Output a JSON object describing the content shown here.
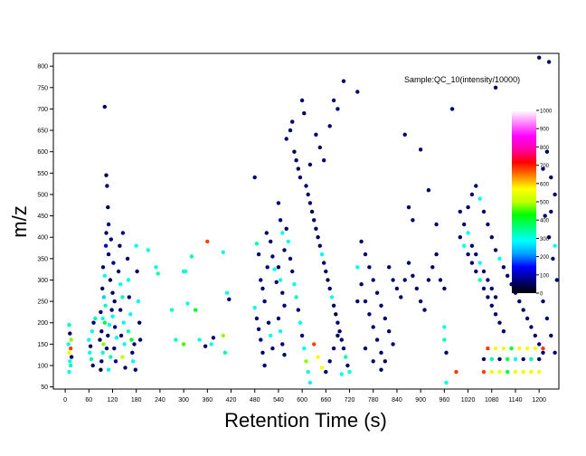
{
  "chart_data": {
    "type": "scatter",
    "title": "Sample:QC_10(intensity/10000)",
    "xlabel": "Retention Time (s)",
    "ylabel": "m/z",
    "xlim": [
      -30,
      1250
    ],
    "ylim": [
      45,
      830
    ],
    "xticks": [
      0,
      60,
      120,
      180,
      240,
      300,
      360,
      420,
      480,
      540,
      600,
      660,
      720,
      780,
      840,
      900,
      960,
      1020,
      1080,
      1140,
      1200
    ],
    "xtick_labels": [
      "0",
      "60",
      "120",
      "180",
      "240",
      "300",
      "360",
      "420",
      "480",
      "540",
      "600",
      "660",
      "720",
      "780",
      "840",
      "900",
      "960",
      "1020",
      "1080",
      "1140",
      "1200"
    ],
    "yticks": [
      50,
      100,
      150,
      200,
      250,
      300,
      350,
      400,
      450,
      500,
      550,
      600,
      650,
      700,
      750,
      800
    ],
    "ytick_labels": [
      "50",
      "100",
      "150",
      "200",
      "250",
      "300",
      "350",
      "400",
      "450",
      "500",
      "550",
      "600",
      "650",
      "700",
      "750",
      "800"
    ],
    "grid": false,
    "colorbar": {
      "min": 0,
      "max": 1000,
      "ticks": [
        0,
        100,
        200,
        300,
        400,
        500,
        600,
        700,
        800,
        900,
        1000
      ],
      "tick_labels": [
        "0",
        "100",
        "200",
        "300",
        "400",
        "500",
        "600",
        "700",
        "800",
        "900",
        "1000"
      ],
      "stops": [
        "#000000",
        "#000080",
        "#0000ff",
        "#00a0ff",
        "#00ffff",
        "#00ff80",
        "#00ff00",
        "#c0ff00",
        "#ffff00",
        "#ff8000",
        "#ff0000",
        "#ff00a0",
        "#ff00ff",
        "#ff80ff",
        "#ffffff"
      ]
    },
    "points": [
      [
        100,
        705,
        60
      ],
      [
        104,
        545,
        40
      ],
      [
        106,
        520,
        60
      ],
      [
        108,
        470,
        40
      ],
      [
        110,
        430,
        80
      ],
      [
        103,
        380,
        120
      ],
      [
        96,
        330,
        60
      ],
      [
        100,
        310,
        300
      ],
      [
        94,
        280,
        40
      ],
      [
        98,
        260,
        250
      ],
      [
        102,
        240,
        320
      ],
      [
        90,
        225,
        60
      ],
      [
        95,
        210,
        300
      ],
      [
        100,
        200,
        400
      ],
      [
        92,
        180,
        60
      ],
      [
        88,
        160,
        40
      ],
      [
        97,
        150,
        480
      ],
      [
        95,
        130,
        320
      ],
      [
        92,
        110,
        60
      ],
      [
        90,
        90,
        40
      ],
      [
        110,
        90,
        280
      ],
      [
        115,
        120,
        330
      ],
      [
        105,
        140,
        60
      ],
      [
        108,
        170,
        60
      ],
      [
        112,
        195,
        280
      ],
      [
        118,
        230,
        60
      ],
      [
        120,
        270,
        60
      ],
      [
        114,
        300,
        40
      ],
      [
        122,
        340,
        80
      ],
      [
        116,
        395,
        60
      ],
      [
        110,
        360,
        60
      ],
      [
        104,
        410,
        40
      ],
      [
        125,
        250,
        60
      ],
      [
        120,
        215,
        300
      ],
      [
        126,
        190,
        60
      ],
      [
        130,
        165,
        280
      ],
      [
        124,
        140,
        60
      ],
      [
        128,
        110,
        80
      ],
      [
        135,
        320,
        60
      ],
      [
        140,
        290,
        300
      ],
      [
        145,
        260,
        330
      ],
      [
        140,
        230,
        60
      ],
      [
        148,
        200,
        280
      ],
      [
        142,
        170,
        60
      ],
      [
        150,
        150,
        300
      ],
      [
        145,
        120,
        500
      ],
      [
        152,
        95,
        60
      ],
      [
        138,
        380,
        60
      ],
      [
        146,
        410,
        80
      ],
      [
        158,
        350,
        60
      ],
      [
        160,
        300,
        300
      ],
      [
        162,
        260,
        60
      ],
      [
        165,
        220,
        280
      ],
      [
        160,
        180,
        330
      ],
      [
        168,
        160,
        420
      ],
      [
        175,
        150,
        60
      ],
      [
        170,
        130,
        60
      ],
      [
        172,
        110,
        280
      ],
      [
        178,
        90,
        60
      ],
      [
        180,
        380,
        300
      ],
      [
        182,
        320,
        60
      ],
      [
        185,
        250,
        280
      ],
      [
        188,
        200,
        60
      ],
      [
        190,
        160,
        60
      ],
      [
        10,
        195,
        330
      ],
      [
        12,
        175,
        60
      ],
      [
        15,
        160,
        480
      ],
      [
        8,
        150,
        280
      ],
      [
        14,
        140,
        680
      ],
      [
        10,
        130,
        560
      ],
      [
        16,
        120,
        60
      ],
      [
        12,
        110,
        300
      ],
      [
        14,
        100,
        330
      ],
      [
        10,
        85,
        300
      ],
      [
        60,
        160,
        280
      ],
      [
        64,
        145,
        60
      ],
      [
        62,
        130,
        300
      ],
      [
        66,
        115,
        330
      ],
      [
        70,
        100,
        60
      ],
      [
        68,
        180,
        300
      ],
      [
        72,
        200,
        60
      ],
      [
        76,
        210,
        330
      ],
      [
        210,
        370,
        300
      ],
      [
        230,
        330,
        300
      ],
      [
        235,
        315,
        330
      ],
      [
        270,
        230,
        320
      ],
      [
        280,
        160,
        320
      ],
      [
        300,
        150,
        450
      ],
      [
        300,
        320,
        330
      ],
      [
        305,
        320,
        280
      ],
      [
        310,
        245,
        300
      ],
      [
        320,
        355,
        330
      ],
      [
        330,
        230,
        420
      ],
      [
        340,
        160,
        300
      ],
      [
        355,
        145,
        60
      ],
      [
        360,
        390,
        680
      ],
      [
        370,
        150,
        300
      ],
      [
        375,
        165,
        60
      ],
      [
        400,
        365,
        300
      ],
      [
        400,
        170,
        480
      ],
      [
        405,
        130,
        330
      ],
      [
        410,
        270,
        300
      ],
      [
        415,
        255,
        60
      ],
      [
        480,
        540,
        60
      ],
      [
        485,
        385,
        330
      ],
      [
        490,
        360,
        60
      ],
      [
        495,
        300,
        60
      ],
      [
        500,
        280,
        60
      ],
      [
        505,
        250,
        60
      ],
      [
        480,
        235,
        300
      ],
      [
        485,
        210,
        60
      ],
      [
        490,
        185,
        60
      ],
      [
        495,
        160,
        60
      ],
      [
        500,
        130,
        60
      ],
      [
        505,
        100,
        60
      ],
      [
        510,
        410,
        60
      ],
      [
        512,
        330,
        80
      ],
      [
        515,
        200,
        60
      ],
      [
        520,
        170,
        300
      ],
      [
        525,
        140,
        60
      ],
      [
        560,
        630,
        60
      ],
      [
        570,
        650,
        60
      ],
      [
        575,
        670,
        60
      ],
      [
        580,
        600,
        40
      ],
      [
        585,
        580,
        60
      ],
      [
        590,
        560,
        40
      ],
      [
        595,
        540,
        60
      ],
      [
        600,
        720,
        60
      ],
      [
        605,
        690,
        40
      ],
      [
        610,
        520,
        60
      ],
      [
        615,
        500,
        60
      ],
      [
        620,
        480,
        60
      ],
      [
        625,
        460,
        40
      ],
      [
        630,
        440,
        60
      ],
      [
        635,
        420,
        60
      ],
      [
        640,
        400,
        40
      ],
      [
        645,
        380,
        60
      ],
      [
        650,
        360,
        300
      ],
      [
        655,
        340,
        60
      ],
      [
        660,
        320,
        60
      ],
      [
        665,
        300,
        40
      ],
      [
        670,
        280,
        60
      ],
      [
        675,
        260,
        300
      ],
      [
        680,
        240,
        60
      ],
      [
        685,
        220,
        40
      ],
      [
        690,
        200,
        60
      ],
      [
        695,
        180,
        60
      ],
      [
        700,
        160,
        60
      ],
      [
        705,
        140,
        60
      ],
      [
        710,
        120,
        330
      ],
      [
        715,
        100,
        60
      ],
      [
        720,
        85,
        300
      ],
      [
        560,
        420,
        60
      ],
      [
        565,
        390,
        300
      ],
      [
        570,
        350,
        60
      ],
      [
        575,
        320,
        60
      ],
      [
        580,
        290,
        300
      ],
      [
        585,
        260,
        330
      ],
      [
        590,
        230,
        60
      ],
      [
        595,
        200,
        300
      ],
      [
        600,
        170,
        60
      ],
      [
        605,
        140,
        300
      ],
      [
        610,
        110,
        480
      ],
      [
        615,
        85,
        300
      ],
      [
        620,
        60,
        280
      ],
      [
        630,
        150,
        680
      ],
      [
        640,
        120,
        560
      ],
      [
        650,
        95,
        560
      ],
      [
        660,
        85,
        60
      ],
      [
        670,
        110,
        60
      ],
      [
        680,
        140,
        60
      ],
      [
        690,
        170,
        60
      ],
      [
        700,
        80,
        300
      ],
      [
        705,
        765,
        60
      ],
      [
        690,
        700,
        60
      ],
      [
        680,
        720,
        60
      ],
      [
        670,
        660,
        60
      ],
      [
        655,
        580,
        60
      ],
      [
        645,
        610,
        60
      ],
      [
        635,
        640,
        60
      ],
      [
        620,
        570,
        60
      ],
      [
        540,
        480,
        60
      ],
      [
        545,
        440,
        60
      ],
      [
        550,
        410,
        300
      ],
      [
        555,
        370,
        60
      ],
      [
        540,
        330,
        60
      ],
      [
        545,
        300,
        300
      ],
      [
        550,
        270,
        60
      ],
      [
        555,
        240,
        60
      ],
      [
        540,
        210,
        60
      ],
      [
        545,
        180,
        300
      ],
      [
        550,
        150,
        60
      ],
      [
        555,
        125,
        60
      ],
      [
        520,
        390,
        60
      ],
      [
        525,
        355,
        60
      ],
      [
        530,
        325,
        300
      ],
      [
        535,
        295,
        60
      ],
      [
        740,
        740,
        60
      ],
      [
        750,
        390,
        60
      ],
      [
        760,
        360,
        60
      ],
      [
        770,
        330,
        60
      ],
      [
        780,
        300,
        60
      ],
      [
        790,
        270,
        60
      ],
      [
        800,
        240,
        60
      ],
      [
        810,
        210,
        60
      ],
      [
        820,
        180,
        60
      ],
      [
        830,
        150,
        60
      ],
      [
        740,
        330,
        300
      ],
      [
        750,
        290,
        60
      ],
      [
        760,
        250,
        60
      ],
      [
        770,
        220,
        60
      ],
      [
        780,
        190,
        60
      ],
      [
        790,
        160,
        60
      ],
      [
        800,
        130,
        60
      ],
      [
        810,
        110,
        60
      ],
      [
        740,
        250,
        60
      ],
      [
        760,
        140,
        60
      ],
      [
        780,
        110,
        60
      ],
      [
        800,
        90,
        60
      ],
      [
        820,
        330,
        60
      ],
      [
        830,
        300,
        60
      ],
      [
        840,
        280,
        60
      ],
      [
        850,
        260,
        60
      ],
      [
        860,
        300,
        60
      ],
      [
        870,
        340,
        60
      ],
      [
        880,
        310,
        60
      ],
      [
        890,
        280,
        60
      ],
      [
        900,
        250,
        60
      ],
      [
        910,
        230,
        60
      ],
      [
        920,
        300,
        60
      ],
      [
        930,
        330,
        60
      ],
      [
        940,
        360,
        60
      ],
      [
        950,
        300,
        60
      ],
      [
        960,
        280,
        60
      ],
      [
        870,
        470,
        60
      ],
      [
        880,
        440,
        60
      ],
      [
        900,
        605,
        60
      ],
      [
        920,
        510,
        60
      ],
      [
        940,
        430,
        60
      ],
      [
        860,
        640,
        60
      ],
      [
        960,
        160,
        330
      ],
      [
        960,
        190,
        300
      ],
      [
        965,
        130,
        60
      ],
      [
        965,
        60,
        300
      ],
      [
        980,
        700,
        60
      ],
      [
        990,
        85,
        680
      ],
      [
        1000,
        400,
        60
      ],
      [
        1010,
        380,
        300
      ],
      [
        1020,
        360,
        60
      ],
      [
        1030,
        340,
        60
      ],
      [
        1040,
        320,
        60
      ],
      [
        1050,
        300,
        330
      ],
      [
        1060,
        280,
        60
      ],
      [
        1070,
        260,
        60
      ],
      [
        1080,
        240,
        60
      ],
      [
        1090,
        220,
        60
      ],
      [
        1100,
        200,
        60
      ],
      [
        1110,
        180,
        60
      ],
      [
        1000,
        460,
        60
      ],
      [
        1010,
        430,
        60
      ],
      [
        1020,
        410,
        300
      ],
      [
        1030,
        380,
        60
      ],
      [
        1040,
        360,
        60
      ],
      [
        1050,
        340,
        300
      ],
      [
        1060,
        320,
        60
      ],
      [
        1070,
        300,
        60
      ],
      [
        1080,
        280,
        60
      ],
      [
        1090,
        260,
        60
      ],
      [
        1020,
        470,
        60
      ],
      [
        1030,
        500,
        60
      ],
      [
        1040,
        520,
        60
      ],
      [
        1050,
        490,
        300
      ],
      [
        1060,
        460,
        60
      ],
      [
        1070,
        430,
        60
      ],
      [
        1080,
        400,
        60
      ],
      [
        1090,
        370,
        60
      ],
      [
        1100,
        350,
        300
      ],
      [
        1110,
        330,
        60
      ],
      [
        1120,
        310,
        60
      ],
      [
        1130,
        290,
        60
      ],
      [
        1140,
        270,
        60
      ],
      [
        1150,
        250,
        60
      ],
      [
        1160,
        230,
        60
      ],
      [
        1170,
        210,
        60
      ],
      [
        1180,
        190,
        60
      ],
      [
        1190,
        170,
        60
      ],
      [
        1200,
        150,
        60
      ],
      [
        1210,
        130,
        60
      ],
      [
        1060,
        85,
        680
      ],
      [
        1080,
        85,
        560
      ],
      [
        1100,
        85,
        560
      ],
      [
        1120,
        85,
        400
      ],
      [
        1140,
        85,
        560
      ],
      [
        1160,
        85,
        560
      ],
      [
        1180,
        85,
        560
      ],
      [
        1200,
        85,
        560
      ],
      [
        1070,
        140,
        680
      ],
      [
        1090,
        140,
        560
      ],
      [
        1110,
        140,
        560
      ],
      [
        1130,
        140,
        400
      ],
      [
        1150,
        140,
        560
      ],
      [
        1170,
        140,
        560
      ],
      [
        1190,
        140,
        560
      ],
      [
        1210,
        140,
        680
      ],
      [
        1060,
        115,
        60
      ],
      [
        1080,
        115,
        330
      ],
      [
        1100,
        115,
        60
      ],
      [
        1120,
        115,
        400
      ],
      [
        1140,
        115,
        300
      ],
      [
        1160,
        115,
        60
      ],
      [
        1180,
        115,
        330
      ],
      [
        1200,
        115,
        60
      ],
      [
        1090,
        750,
        60
      ],
      [
        1200,
        820,
        60
      ],
      [
        1225,
        810,
        60
      ],
      [
        1210,
        560,
        60
      ],
      [
        1220,
        600,
        60
      ],
      [
        1230,
        540,
        60
      ],
      [
        1240,
        500,
        60
      ],
      [
        1215,
        450,
        60
      ],
      [
        1225,
        400,
        60
      ],
      [
        1235,
        350,
        60
      ],
      [
        1245,
        300,
        60
      ],
      [
        1210,
        250,
        60
      ],
      [
        1220,
        210,
        60
      ],
      [
        1230,
        170,
        60
      ],
      [
        1240,
        130,
        60
      ],
      [
        1240,
        380,
        300
      ],
      [
        1230,
        460,
        60
      ]
    ]
  }
}
